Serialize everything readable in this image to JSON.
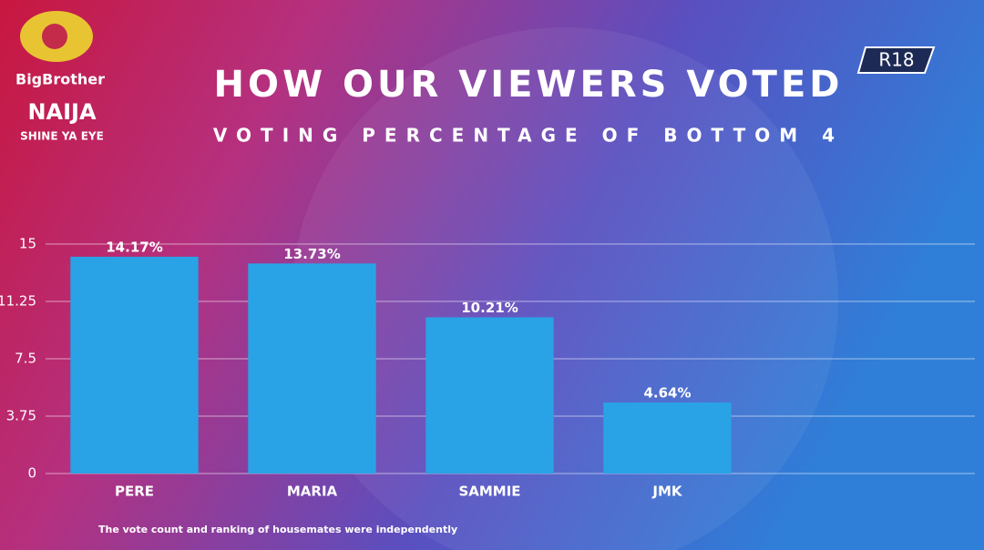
{
  "chart_data": {
    "type": "bar",
    "title": "HOW OUR VIEWERS VOTED",
    "subtitle": "VOTING PERCENTAGE OF BOTTOM 4",
    "categories": [
      "PERE",
      "MARIA",
      "SAMMIE",
      "JMK"
    ],
    "values": [
      14.17,
      13.73,
      10.21,
      4.64
    ],
    "value_labels": [
      "14.17%",
      "13.73%",
      "10.21%",
      "4.64%"
    ],
    "color": "#2aa2e6",
    "ylim": [
      0,
      15
    ],
    "yticks": [
      0,
      3.75,
      7.5,
      11.25,
      15
    ],
    "grid": true
  },
  "logo": {
    "name": "BigBrother",
    "country": "NAIJA",
    "tagline": "SHINE YA EYE"
  },
  "rating": "R18",
  "footnote": "The vote count and ranking of housemates were independently"
}
